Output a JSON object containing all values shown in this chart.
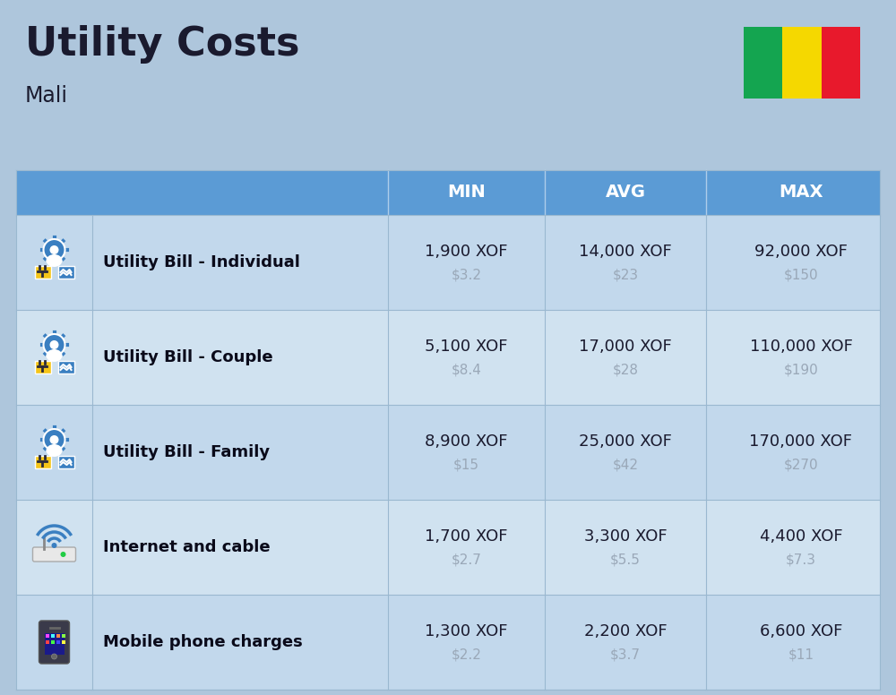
{
  "title": "Utility Costs",
  "subtitle": "Mali",
  "background_color": "#aec6dc",
  "header_bg_color": "#5b9bd5",
  "header_text_color": "#ffffff",
  "row_bg_colors": [
    "#c2d8ec",
    "#d0e2f0"
  ],
  "cell_border_color": "#9ab8d0",
  "columns": [
    "",
    "",
    "MIN",
    "AVG",
    "MAX"
  ],
  "rows": [
    {
      "label": "Utility Bill - Individual",
      "min_xof": "1,900 XOF",
      "min_usd": "$3.2",
      "avg_xof": "14,000 XOF",
      "avg_usd": "$23",
      "max_xof": "92,000 XOF",
      "max_usd": "$150"
    },
    {
      "label": "Utility Bill - Couple",
      "min_xof": "5,100 XOF",
      "min_usd": "$8.4",
      "avg_xof": "17,000 XOF",
      "avg_usd": "$28",
      "max_xof": "110,000 XOF",
      "max_usd": "$190"
    },
    {
      "label": "Utility Bill - Family",
      "min_xof": "8,900 XOF",
      "min_usd": "$15",
      "avg_xof": "25,000 XOF",
      "avg_usd": "$42",
      "max_xof": "170,000 XOF",
      "max_usd": "$270"
    },
    {
      "label": "Internet and cable",
      "min_xof": "1,700 XOF",
      "min_usd": "$2.7",
      "avg_xof": "3,300 XOF",
      "avg_usd": "$5.5",
      "max_xof": "4,400 XOF",
      "max_usd": "$7.3"
    },
    {
      "label": "Mobile phone charges",
      "min_xof": "1,300 XOF",
      "min_usd": "$2.2",
      "avg_xof": "2,200 XOF",
      "avg_usd": "$3.7",
      "max_xof": "6,600 XOF",
      "max_usd": "$11"
    }
  ],
  "flag_colors": [
    "#14a550",
    "#f5d800",
    "#e8192c"
  ],
  "main_text_color": "#1a1a2e",
  "usd_text_color": "#9aa8b8",
  "label_text_color": "#0a0a1a",
  "icon_blue": "#3a7fc1",
  "icon_yellow": "#f5c518",
  "icon_dark": "#2a2a3a"
}
